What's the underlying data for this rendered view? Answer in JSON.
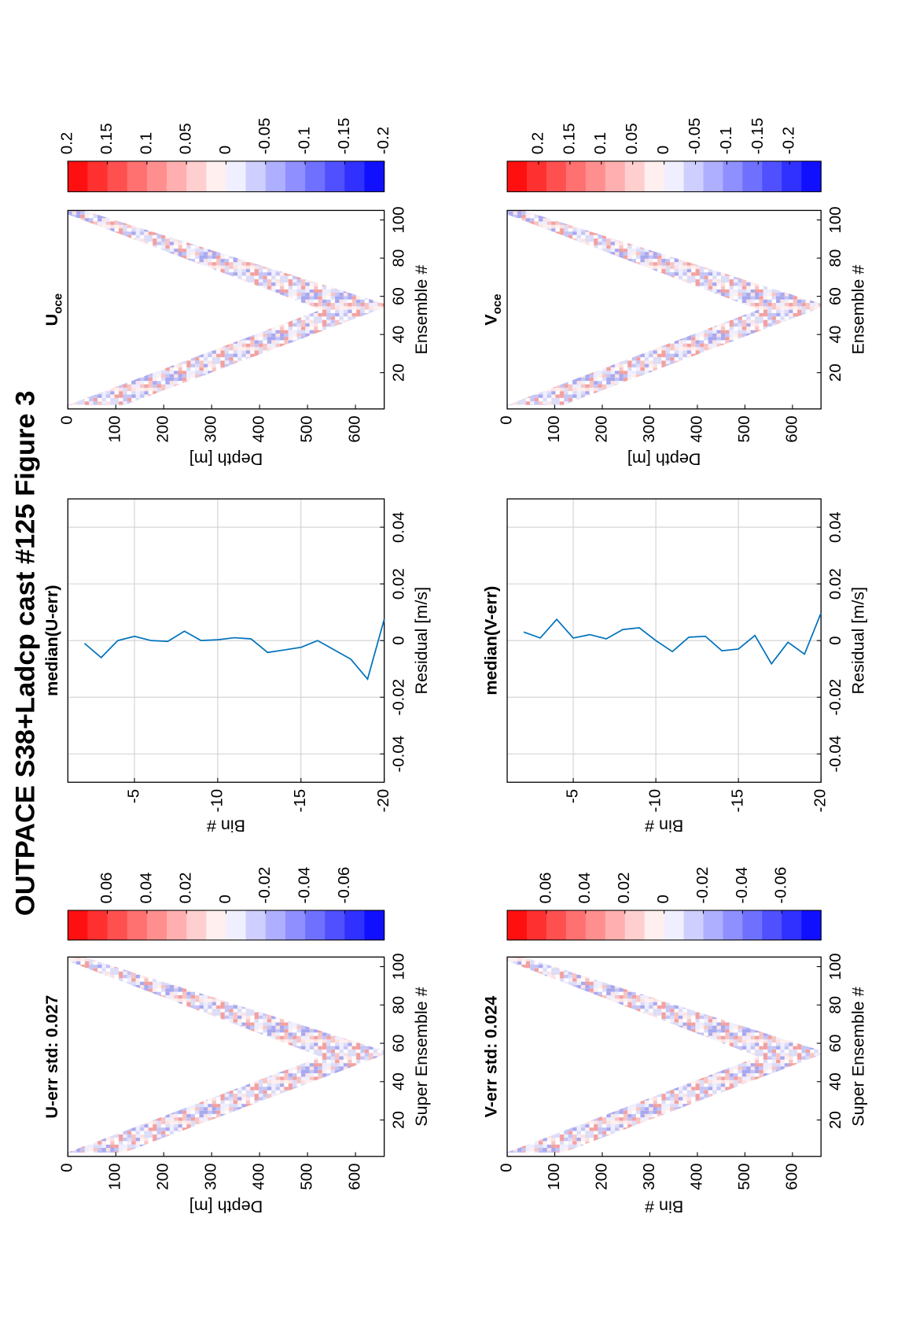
{
  "title": "OUTPACE S38+Ladcp cast #125  Figure 3",
  "chart_data": [
    {
      "type": "heatmap",
      "title": {
        "main": "U-err std: 0.027"
      },
      "xlabel": "Super Ensemble #",
      "ylabel": "Depth [m]",
      "xlim": [
        1,
        105
      ],
      "xticks": [
        20,
        40,
        60,
        80,
        100
      ],
      "ylim": [
        0,
        660
      ],
      "yticks": [
        0,
        100,
        200,
        300,
        400,
        500,
        600
      ],
      "reverse_y": true,
      "colorbar": {
        "clim": [
          -0.08,
          0.08
        ],
        "ticks": [
          0.06,
          0.04,
          0.02,
          0,
          -0.02,
          -0.04,
          -0.06
        ]
      }
    },
    {
      "type": "line",
      "title": {
        "main": "median(U-err)"
      },
      "xlabel": "Residual [m/s]",
      "ylabel": "Bin #",
      "xlim": [
        -0.05,
        0.05
      ],
      "xticks": [
        -0.04,
        -0.02,
        0,
        0.02,
        0.04
      ],
      "ylim": [
        -20,
        -1
      ],
      "yticks": [
        -5,
        -10,
        -15,
        -20
      ],
      "grid": true,
      "bins": [
        -2,
        -3,
        -4,
        -5,
        -6,
        -7,
        -8,
        -9,
        -10,
        -11,
        -12,
        -13,
        -14,
        -15,
        -16,
        -17,
        -18,
        -19,
        -20
      ],
      "series": [
        {
          "color": "#0072bd",
          "values": [
            -0.001,
            -0.006,
            0,
            0.0015,
            0,
            -0.0003,
            0.0033,
            0,
            0.0003,
            0.001,
            0.0006,
            -0.0042,
            -0.0033,
            -0.0024,
            0,
            -0.0033,
            -0.0066,
            -0.0136,
            0.0075
          ]
        }
      ]
    },
    {
      "type": "heatmap",
      "title": {
        "main": "U",
        "sub": "oce"
      },
      "xlabel": "Ensemble #",
      "ylabel": "Depth [m]",
      "xlim": [
        1,
        105
      ],
      "xticks": [
        20,
        40,
        60,
        80,
        100
      ],
      "ylim": [
        0,
        660
      ],
      "yticks": [
        0,
        100,
        200,
        300,
        400,
        500,
        600
      ],
      "reverse_y": true,
      "colorbar": {
        "clim": [
          -0.2,
          0.2
        ],
        "ticks": [
          0.2,
          0.15,
          0.1,
          0.05,
          0,
          -0.05,
          -0.1,
          -0.15,
          -0.2
        ]
      }
    },
    {
      "type": "heatmap",
      "title": {
        "main": "V-err std: 0.024"
      },
      "xlabel": "Super Ensemble #",
      "ylabel": "Bin #",
      "xlim": [
        1,
        105
      ],
      "xticks": [
        20,
        40,
        60,
        80,
        100
      ],
      "ylim": [
        0,
        660
      ],
      "yticks": [
        0,
        100,
        200,
        300,
        400,
        500,
        600
      ],
      "reverse_y": true,
      "colorbar": {
        "clim": [
          -0.08,
          0.08
        ],
        "ticks": [
          0.06,
          0.04,
          0.02,
          0,
          -0.02,
          -0.04,
          -0.06
        ]
      }
    },
    {
      "type": "line",
      "title": {
        "main": "median(V-err)"
      },
      "xlabel": "Residual [m/s]",
      "ylabel": "Bin #",
      "xlim": [
        -0.05,
        0.05
      ],
      "xticks": [
        -0.04,
        -0.02,
        0,
        0.02,
        0.04
      ],
      "ylim": [
        -20,
        -1
      ],
      "yticks": [
        -5,
        -10,
        -15,
        -20
      ],
      "grid": true,
      "bins": [
        -2,
        -3,
        -4,
        -5,
        -6,
        -7,
        -8,
        -9,
        -10,
        -11,
        -12,
        -13,
        -14,
        -15,
        -16,
        -17,
        -18,
        -19,
        -20
      ],
      "series": [
        {
          "color": "#0072bd",
          "values": [
            0.003,
            0.0009,
            0.0075,
            0.0009,
            0.0021,
            0.0006,
            0.0039,
            0.0045,
            0,
            -0.0039,
            0.0012,
            0.0015,
            -0.0036,
            -0.003,
            0.0018,
            -0.0082,
            -0.0006,
            -0.0048,
            0.0097
          ]
        }
      ]
    },
    {
      "type": "heatmap",
      "title": {
        "main": "V",
        "sub": "oce"
      },
      "xlabel": "Ensemble #",
      "ylabel": "Depth [m]",
      "xlim": [
        1,
        105
      ],
      "xticks": [
        20,
        40,
        60,
        80,
        100
      ],
      "ylim": [
        0,
        660
      ],
      "yticks": [
        0,
        100,
        200,
        300,
        400,
        500,
        600
      ],
      "reverse_y": true,
      "colorbar": {
        "clim": [
          -0.25,
          0.25
        ],
        "ticks": [
          0.2,
          0.15,
          0.1,
          0.05,
          0,
          -0.05,
          -0.1,
          -0.15,
          -0.2
        ]
      }
    }
  ]
}
